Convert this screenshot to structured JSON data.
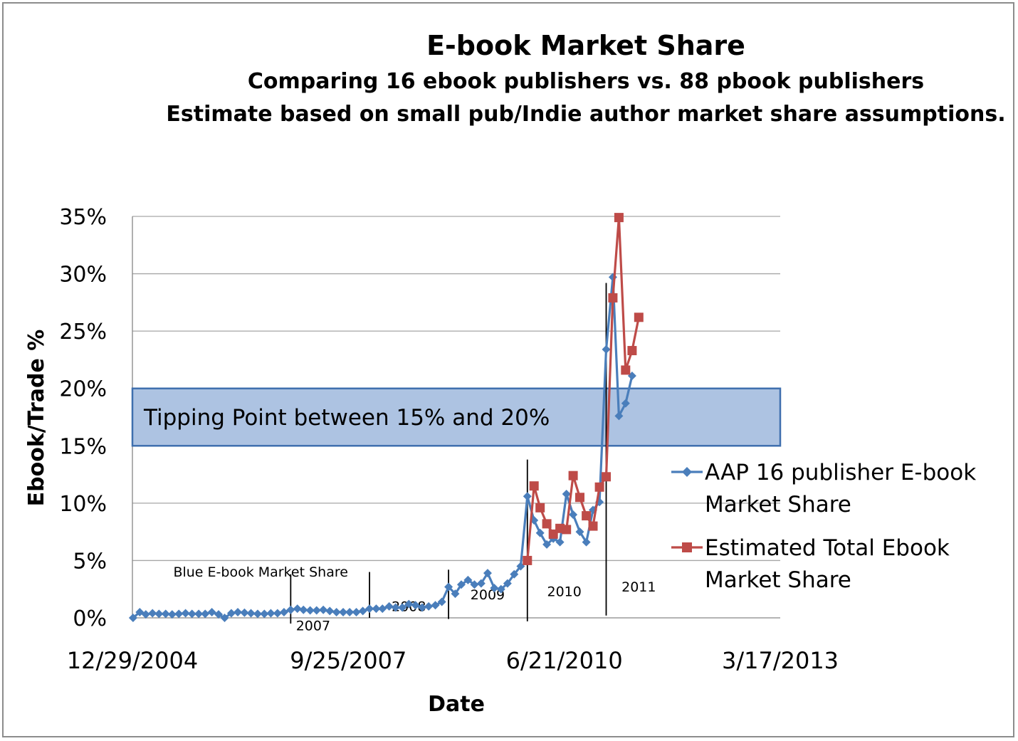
{
  "chart_data": {
    "type": "line",
    "title": "E-book Market Share",
    "subtitle_lines": [
      "Comparing 16 ebook publishers vs. 88 pbook publishers",
      "Estimate based on small pub/Indie author market share assumptions."
    ],
    "xlabel": "Date",
    "ylabel": "Ebook/Trade %",
    "xlim": [
      "2004-12-29",
      "2013-03-17"
    ],
    "ylim": [
      0,
      35
    ],
    "x_ticks": [
      "12/29/2004",
      "9/25/2007",
      "6/21/2010",
      "3/17/2013"
    ],
    "y_ticks": [
      "0%",
      "5%",
      "10%",
      "15%",
      "20%",
      "25%",
      "30%",
      "35%"
    ],
    "grid": true,
    "legend_position": "right",
    "band": {
      "y_from": 15,
      "y_to": 20,
      "label": "Tipping Point between 15% and 20%",
      "fill": "#adc3e2",
      "stroke": "#3f6fae"
    },
    "annotations": [
      {
        "text": "Blue E-book Market Share",
        "x": "2006-08-15",
        "y": 3.6
      },
      {
        "text": "2007",
        "x": "2007-04-15",
        "y": -1.1
      },
      {
        "text": "2008",
        "x": "2008-07-01",
        "y": 0.6
      },
      {
        "text": "2009",
        "x": "2009-07-01",
        "y": 1.6
      },
      {
        "text": "2010",
        "x": "2010-06-21",
        "y": 1.9
      },
      {
        "text": "2011",
        "x": "2011-06-01",
        "y": 2.3
      }
    ],
    "year_lines": [
      {
        "x": "2007-01-01",
        "y_from": -0.5,
        "y_to": 3.8
      },
      {
        "x": "2008-01-01",
        "y_from": 0.0,
        "y_to": 4.0
      },
      {
        "x": "2009-01-01",
        "y_from": -0.1,
        "y_to": 4.2
      },
      {
        "x": "2010-01-01",
        "y_from": -0.3,
        "y_to": 13.8
      },
      {
        "x": "2011-01-01",
        "y_from": 0.2,
        "y_to": 29.2
      }
    ],
    "series": [
      {
        "name": "AAP 16 publisher E-book Market Share",
        "color": "#4a7ebb",
        "marker": "diamond",
        "x": [
          "2005-01-01",
          "2005-02-01",
          "2005-03-01",
          "2005-04-01",
          "2005-05-01",
          "2005-06-01",
          "2005-07-01",
          "2005-08-01",
          "2005-09-01",
          "2005-10-01",
          "2005-11-01",
          "2005-12-01",
          "2006-01-01",
          "2006-02-01",
          "2006-03-01",
          "2006-04-01",
          "2006-05-01",
          "2006-06-01",
          "2006-07-01",
          "2006-08-01",
          "2006-09-01",
          "2006-10-01",
          "2006-11-01",
          "2006-12-01",
          "2007-01-01",
          "2007-02-01",
          "2007-03-01",
          "2007-04-01",
          "2007-05-01",
          "2007-06-01",
          "2007-07-01",
          "2007-08-01",
          "2007-09-01",
          "2007-10-01",
          "2007-11-01",
          "2007-12-01",
          "2008-01-01",
          "2008-02-01",
          "2008-03-01",
          "2008-04-01",
          "2008-05-01",
          "2008-06-01",
          "2008-07-01",
          "2008-08-01",
          "2008-09-01",
          "2008-10-01",
          "2008-11-01",
          "2008-12-01",
          "2009-01-01",
          "2009-02-01",
          "2009-03-01",
          "2009-04-01",
          "2009-05-01",
          "2009-06-01",
          "2009-07-01",
          "2009-08-01",
          "2009-09-01",
          "2009-10-01",
          "2009-11-01",
          "2009-12-01",
          "2010-01-01",
          "2010-02-01",
          "2010-03-01",
          "2010-04-01",
          "2010-05-01",
          "2010-06-01",
          "2010-07-01",
          "2010-08-01",
          "2010-09-01",
          "2010-10-01",
          "2010-11-01",
          "2010-12-01",
          "2011-01-01",
          "2011-02-01",
          "2011-03-01",
          "2011-04-01",
          "2011-05-01",
          "2011-06-01"
        ],
        "y": [
          0.0,
          0.5,
          0.3,
          0.4,
          0.35,
          0.35,
          0.3,
          0.35,
          0.4,
          0.35,
          0.35,
          0.35,
          0.5,
          0.3,
          0.0,
          0.4,
          0.5,
          0.45,
          0.4,
          0.35,
          0.35,
          0.4,
          0.4,
          0.5,
          0.7,
          0.8,
          0.7,
          0.65,
          0.65,
          0.7,
          0.6,
          0.5,
          0.5,
          0.5,
          0.5,
          0.6,
          0.8,
          0.8,
          0.8,
          1.0,
          0.9,
          0.9,
          1.2,
          1.1,
          0.9,
          1.0,
          1.1,
          1.4,
          2.7,
          2.1,
          2.9,
          3.3,
          2.9,
          3.0,
          3.9,
          2.6,
          2.5,
          3.0,
          3.8,
          4.5,
          10.6,
          8.5,
          7.4,
          6.4,
          6.9,
          6.6,
          10.8,
          9.0,
          7.5,
          6.6,
          9.4,
          10.1,
          23.4,
          29.7,
          17.6,
          18.7,
          21.1,
          null
        ]
      },
      {
        "name": "Estimated Total Ebook Market Share",
        "color": "#be4b48",
        "marker": "square",
        "x": [
          "2010-01-01",
          "2010-02-01",
          "2010-03-01",
          "2010-04-01",
          "2010-05-01",
          "2010-06-01",
          "2010-07-01",
          "2010-08-01",
          "2010-09-01",
          "2010-10-01",
          "2010-11-01",
          "2010-12-01",
          "2011-01-01",
          "2011-02-01",
          "2011-03-01",
          "2011-04-01",
          "2011-05-01",
          "2011-06-01"
        ],
        "y": [
          5.0,
          11.5,
          9.6,
          8.2,
          7.3,
          7.8,
          7.7,
          12.4,
          10.5,
          8.9,
          8.0,
          11.4,
          12.3,
          27.9,
          34.9,
          21.6,
          23.3,
          26.2
        ]
      }
    ]
  }
}
